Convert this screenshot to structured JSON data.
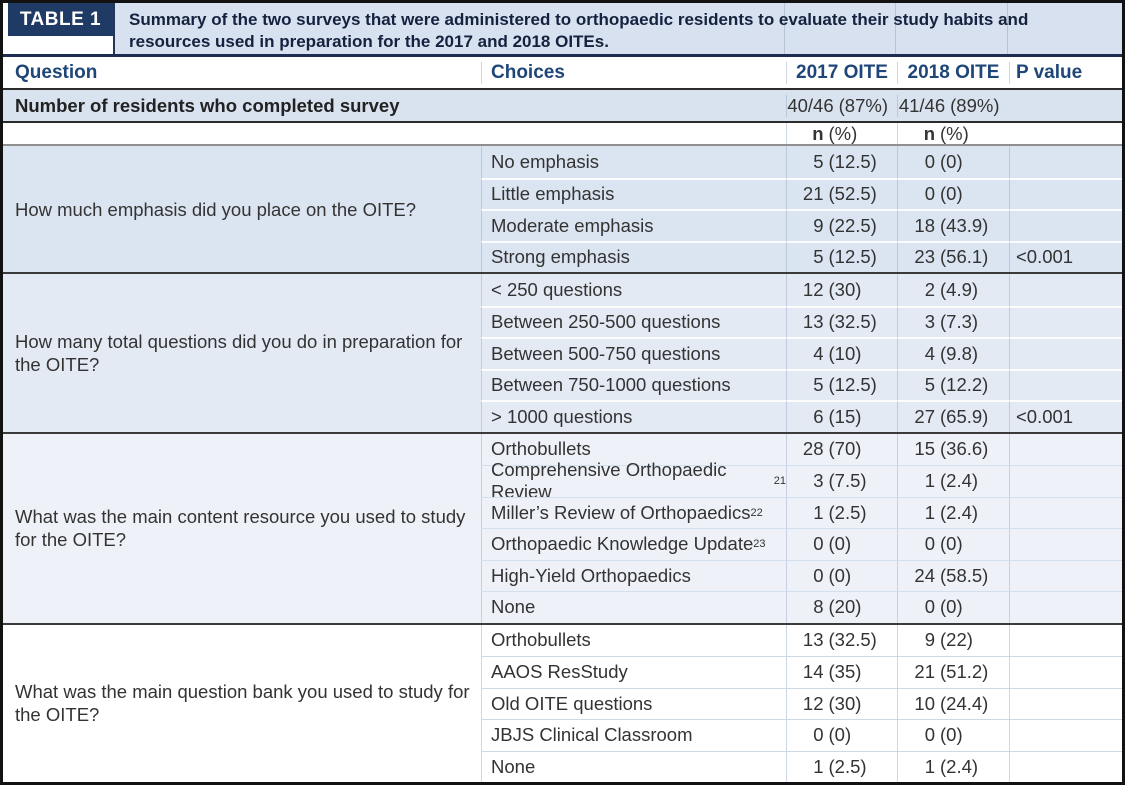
{
  "header": {
    "label": "TABLE 1",
    "title": "Summary of the two surveys that were administered to orthopaedic residents to evaluate their study habits and resources used in preparation for the 2017 and 2018 OITEs."
  },
  "columns": {
    "question": "Question",
    "choices": "Choices",
    "y2017": "2017 OITE",
    "y2018": "2018 OITE",
    "pvalue": "P value"
  },
  "survey_row": {
    "label": "Number of residents who completed survey",
    "v2017_n": "40/46",
    "v2017_pct": "(87%)",
    "v2018_n": "41/46",
    "v2018_pct": "(89%)"
  },
  "subheader": {
    "n_label": "n",
    "pct_label": "(%)"
  },
  "sections": [
    {
      "question": "How much emphasis did you place on the OITE?",
      "rows": [
        {
          "choice": "No emphasis",
          "sup": "",
          "n2017": "5",
          "pct2017": "(12.5)",
          "n2018": "0",
          "pct2018": "(0)",
          "p": ""
        },
        {
          "choice": "Little emphasis",
          "sup": "",
          "n2017": "21",
          "pct2017": "(52.5)",
          "n2018": "0",
          "pct2018": "(0)",
          "p": ""
        },
        {
          "choice": "Moderate emphasis",
          "sup": "",
          "n2017": "9",
          "pct2017": "(22.5)",
          "n2018": "18",
          "pct2018": "(43.9)",
          "p": ""
        },
        {
          "choice": "Strong emphasis",
          "sup": "",
          "n2017": "5",
          "pct2017": "(12.5)",
          "n2018": "23",
          "pct2018": "(56.1)",
          "p": "<0.001"
        }
      ]
    },
    {
      "question": "How many total questions did you do in preparation for the OITE?",
      "rows": [
        {
          "choice": "< 250 questions",
          "sup": "",
          "n2017": "12",
          "pct2017": "(30)",
          "n2018": "2",
          "pct2018": "(4.9)",
          "p": ""
        },
        {
          "choice": "Between 250-500 questions",
          "sup": "",
          "n2017": "13",
          "pct2017": "(32.5)",
          "n2018": "3",
          "pct2018": "(7.3)",
          "p": ""
        },
        {
          "choice": "Between 500-750 questions",
          "sup": "",
          "n2017": "4",
          "pct2017": "(10)",
          "n2018": "4",
          "pct2018": "(9.8)",
          "p": ""
        },
        {
          "choice": "Between 750-1000 questions",
          "sup": "",
          "n2017": "5",
          "pct2017": "(12.5)",
          "n2018": "5",
          "pct2018": "(12.2)",
          "p": ""
        },
        {
          "choice": "> 1000 questions",
          "sup": "",
          "n2017": "6",
          "pct2017": "(15)",
          "n2018": "27",
          "pct2018": "(65.9)",
          "p": "<0.001"
        }
      ]
    },
    {
      "question": "What was the main content resource you used to study for the OITE?",
      "rows": [
        {
          "choice": "Orthobullets",
          "sup": "",
          "n2017": "28",
          "pct2017": "(70)",
          "n2018": "15",
          "pct2018": "(36.6)",
          "p": ""
        },
        {
          "choice": "Comprehensive Orthopaedic Review",
          "sup": "21",
          "n2017": "3",
          "pct2017": "(7.5)",
          "n2018": "1",
          "pct2018": "(2.4)",
          "p": ""
        },
        {
          "choice": "Miller’s Review of Orthopaedics",
          "sup": "22",
          "n2017": "1",
          "pct2017": "(2.5)",
          "n2018": "1",
          "pct2018": "(2.4)",
          "p": ""
        },
        {
          "choice": "Orthopaedic Knowledge Update",
          "sup": "23",
          "n2017": "0",
          "pct2017": "(0)",
          "n2018": "0",
          "pct2018": "(0)",
          "p": ""
        },
        {
          "choice": "High-Yield Orthopaedics",
          "sup": "",
          "n2017": "0",
          "pct2017": "(0)",
          "n2018": "24",
          "pct2018": "(58.5)",
          "p": ""
        },
        {
          "choice": "None",
          "sup": "",
          "n2017": "8",
          "pct2017": "(20)",
          "n2018": "0",
          "pct2018": "(0)",
          "p": ""
        }
      ]
    },
    {
      "question": "What was the main question bank you used to study for the OITE?",
      "rows": [
        {
          "choice": "Orthobullets",
          "sup": "",
          "n2017": "13",
          "pct2017": "(32.5)",
          "n2018": "9",
          "pct2018": "(22)",
          "p": ""
        },
        {
          "choice": "AAOS ResStudy",
          "sup": "",
          "n2017": "14",
          "pct2017": "(35)",
          "n2018": "21",
          "pct2018": "(51.2)",
          "p": ""
        },
        {
          "choice": "Old OITE questions",
          "sup": "",
          "n2017": "12",
          "pct2017": "(30)",
          "n2018": "10",
          "pct2018": "(24.4)",
          "p": ""
        },
        {
          "choice": "JBJS Clinical Classroom",
          "sup": "",
          "n2017": "0",
          "pct2017": "(0)",
          "n2018": "0",
          "pct2018": "(0)",
          "p": ""
        },
        {
          "choice": "None",
          "sup": "",
          "n2017": "1",
          "pct2017": "(2.5)",
          "n2018": "1",
          "pct2018": "(2.4)",
          "p": ""
        }
      ]
    }
  ],
  "colors": {
    "label_box_navy": "#203a66",
    "title_band_blue": "#d8e1ef",
    "header_text_navy": "#1e4678",
    "section_blue_dark": "#dbe5f1",
    "section_blue_mid": "#e3eaf4",
    "section_blue_light": "#eef2f8",
    "section_white": "#ffffff",
    "body_text": "#333333",
    "border_black": "#121212"
  }
}
